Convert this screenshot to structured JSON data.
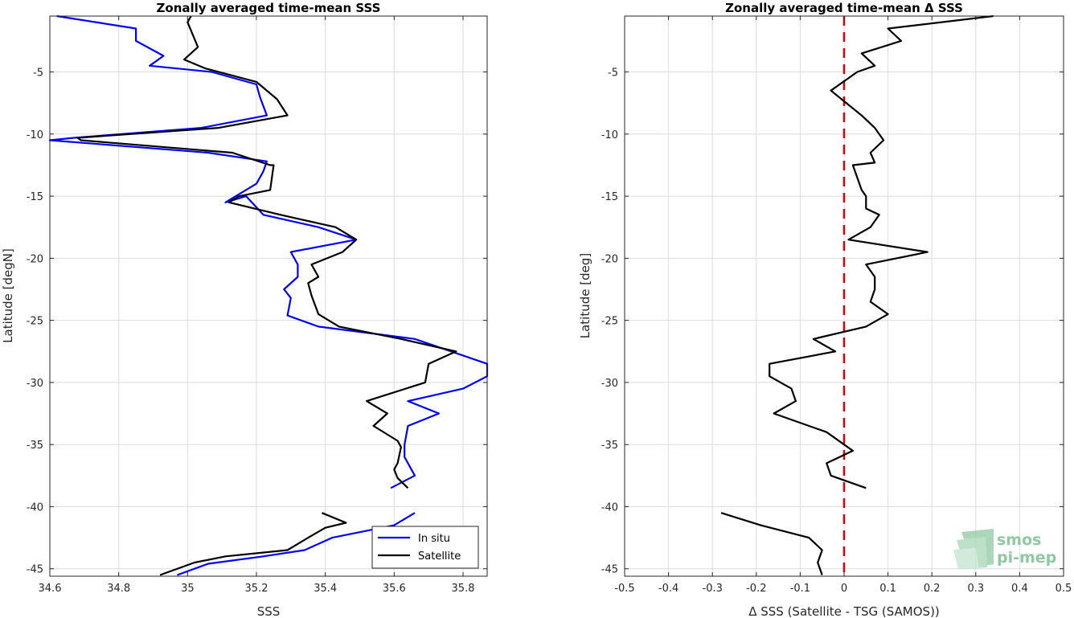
{
  "chart_data": [
    {
      "type": "line",
      "title": "Zonally averaged time-mean SSS",
      "xlabel": "SSS",
      "ylabel": "Latitude [degN]",
      "xlim": [
        34.6,
        35.87
      ],
      "ylim": [
        -45.6,
        -0.5
      ],
      "xticks": [
        34.6,
        34.8,
        35,
        35.2,
        35.4,
        35.6,
        35.8
      ],
      "xtick_labels": [
        "34.6",
        "34.8",
        "35",
        "35.2",
        "35.4",
        "35.6",
        "35.8"
      ],
      "yticks": [
        -45,
        -40,
        -35,
        -30,
        -25,
        -20,
        -15,
        -10,
        -5
      ],
      "ytick_labels": [
        "-45",
        "-40",
        "-35",
        "-30",
        "-25",
        "-20",
        "-15",
        "-10",
        "-5"
      ],
      "grid": true,
      "legend": "bottom-right",
      "series": [
        {
          "name": "In situ",
          "color": "#0000ff",
          "segments": [
            {
              "x": [
                34.62,
                34.85,
                34.85,
                34.93,
                34.89,
                35.07,
                35.2,
                35.21,
                35.23,
                35.04,
                34.67,
                34.6,
                35.06,
                35.23,
                35.22,
                35.2,
                35.11,
                35.17,
                35.22,
                35.38,
                35.49,
                35.3,
                35.32,
                35.32,
                35.28,
                35.3,
                35.29,
                35.38,
                35.66,
                35.87,
                35.87,
                35.8,
                35.64,
                35.73,
                35.64,
                35.63,
                35.63,
                35.66,
                35.59
              ],
              "y": [
                -0.5,
                -1.5,
                -2.5,
                -3.7,
                -4.5,
                -5.0,
                -6.0,
                -7.0,
                -8.5,
                -9.5,
                -10.3,
                -10.5,
                -11.5,
                -12.2,
                -13.0,
                -14.0,
                -15.5,
                -15.0,
                -16.5,
                -17.5,
                -18.5,
                -19.5,
                -20.5,
                -21.5,
                -22.5,
                -23.2,
                -24.6,
                -25.5,
                -26.5,
                -28.5,
                -29.5,
                -30.5,
                -31.5,
                -32.5,
                -33.5,
                -35.0,
                -36.0,
                -37.5,
                -38.5
              ]
            },
            {
              "x": [
                35.66,
                35.6,
                35.42,
                35.34,
                35.22,
                35.06,
                34.97
              ],
              "y": [
                -40.5,
                -41.5,
                -42.5,
                -43.5,
                -44.0,
                -44.6,
                -45.5
              ]
            }
          ]
        },
        {
          "name": "Satellite",
          "color": "#000000",
          "segments": [
            {
              "x": [
                35.01,
                35.0,
                35.03,
                34.99,
                35.05,
                35.2,
                35.26,
                35.29,
                35.09,
                34.68,
                34.69,
                35.13,
                35.24,
                35.25,
                35.24,
                35.15,
                35.12,
                35.27,
                35.43,
                35.49,
                35.45,
                35.36,
                35.38,
                35.35,
                35.36,
                35.38,
                35.44,
                35.62,
                35.78,
                35.7,
                35.69,
                35.52,
                35.58,
                35.54,
                35.61,
                35.62,
                35.61,
                35.6,
                35.61,
                35.64
              ],
              "y": [
                -0.5,
                -1.0,
                -3.0,
                -4.0,
                -4.7,
                -5.8,
                -7.2,
                -8.5,
                -9.5,
                -10.3,
                -10.5,
                -11.5,
                -12.5,
                -12.5,
                -14.5,
                -15.0,
                -15.5,
                -16.5,
                -17.5,
                -18.5,
                -19.5,
                -20.5,
                -21.5,
                -22.0,
                -23.0,
                -24.5,
                -25.5,
                -26.5,
                -27.5,
                -28.5,
                -30.0,
                -31.5,
                -32.5,
                -33.5,
                -34.7,
                -35.2,
                -36.5,
                -37.0,
                -37.7,
                -38.5
              ]
            },
            {
              "x": [
                35.39,
                35.46,
                35.4,
                35.35,
                35.29,
                35.11,
                35.02,
                34.92
              ],
              "y": [
                -40.5,
                -41.3,
                -41.7,
                -42.5,
                -43.5,
                -44.0,
                -44.5,
                -45.5
              ]
            }
          ]
        }
      ]
    },
    {
      "type": "line",
      "title": "Zonally averaged time-mean Δ SSS",
      "xlabel": "Δ SSS (Satellite - TSG (SAMOS))",
      "ylabel": "Latitude [deg]",
      "xlim": [
        -0.5,
        0.5
      ],
      "ylim": [
        -45.6,
        -0.5
      ],
      "xticks": [
        -0.5,
        -0.4,
        -0.3,
        -0.2,
        -0.1,
        0,
        0.1,
        0.2,
        0.3,
        0.4,
        0.5
      ],
      "xtick_labels": [
        "-0.5",
        "-0.4",
        "-0.3",
        "-0.2",
        "-0.1",
        "0",
        "0.1",
        "0.2",
        "0.3",
        "0.4",
        "0.5"
      ],
      "yticks": [
        -45,
        -40,
        -35,
        -30,
        -25,
        -20,
        -15,
        -10,
        -5
      ],
      "ytick_labels": [
        "-45",
        "-40",
        "-35",
        "-30",
        "-25",
        "-20",
        "-15",
        "-10",
        "-5"
      ],
      "grid": true,
      "reference_line": {
        "x": 0,
        "color": "#e00000",
        "style": "dashed"
      },
      "series": [
        {
          "color": "#000000",
          "segments": [
            {
              "x": [
                0.34,
                0.1,
                0.13,
                0.04,
                0.07,
                0.03,
                -0.03,
                0.04,
                0.07,
                0.09,
                0.06,
                0.07,
                0.02,
                0.04,
                0.05,
                0.05,
                0.08,
                0.06,
                0.01,
                0.19,
                0.05,
                0.07,
                0.07,
                0.06,
                0.1,
                0.05,
                -0.07,
                -0.02,
                -0.17,
                -0.17,
                -0.12,
                -0.11,
                -0.16,
                -0.04,
                0.0,
                0.02,
                -0.04,
                -0.03,
                0.05
              ],
              "y": [
                -0.5,
                -1.5,
                -2.5,
                -3.5,
                -4.5,
                -5.0,
                -6.5,
                -8.5,
                -9.5,
                -10.5,
                -11.5,
                -12.3,
                -12.5,
                -14.5,
                -15.0,
                -16.0,
                -16.5,
                -17.5,
                -18.5,
                -19.5,
                -20.5,
                -21.5,
                -22.5,
                -23.5,
                -24.5,
                -25.5,
                -26.5,
                -27.5,
                -28.5,
                -29.5,
                -30.5,
                -31.5,
                -32.5,
                -34.0,
                -35.0,
                -35.5,
                -36.5,
                -37.5,
                -38.5
              ]
            },
            {
              "x": [
                -0.28,
                -0.19,
                -0.08,
                -0.05,
                -0.06,
                -0.05
              ],
              "y": [
                -40.5,
                -41.5,
                -42.5,
                -43.5,
                -44.5,
                -45.5
              ]
            }
          ]
        }
      ]
    }
  ],
  "legend": {
    "items": [
      "In situ",
      "Satellite"
    ]
  },
  "logo": {
    "line1": "smos",
    "line2": "pi-mep",
    "color": "#8fc9a4"
  }
}
